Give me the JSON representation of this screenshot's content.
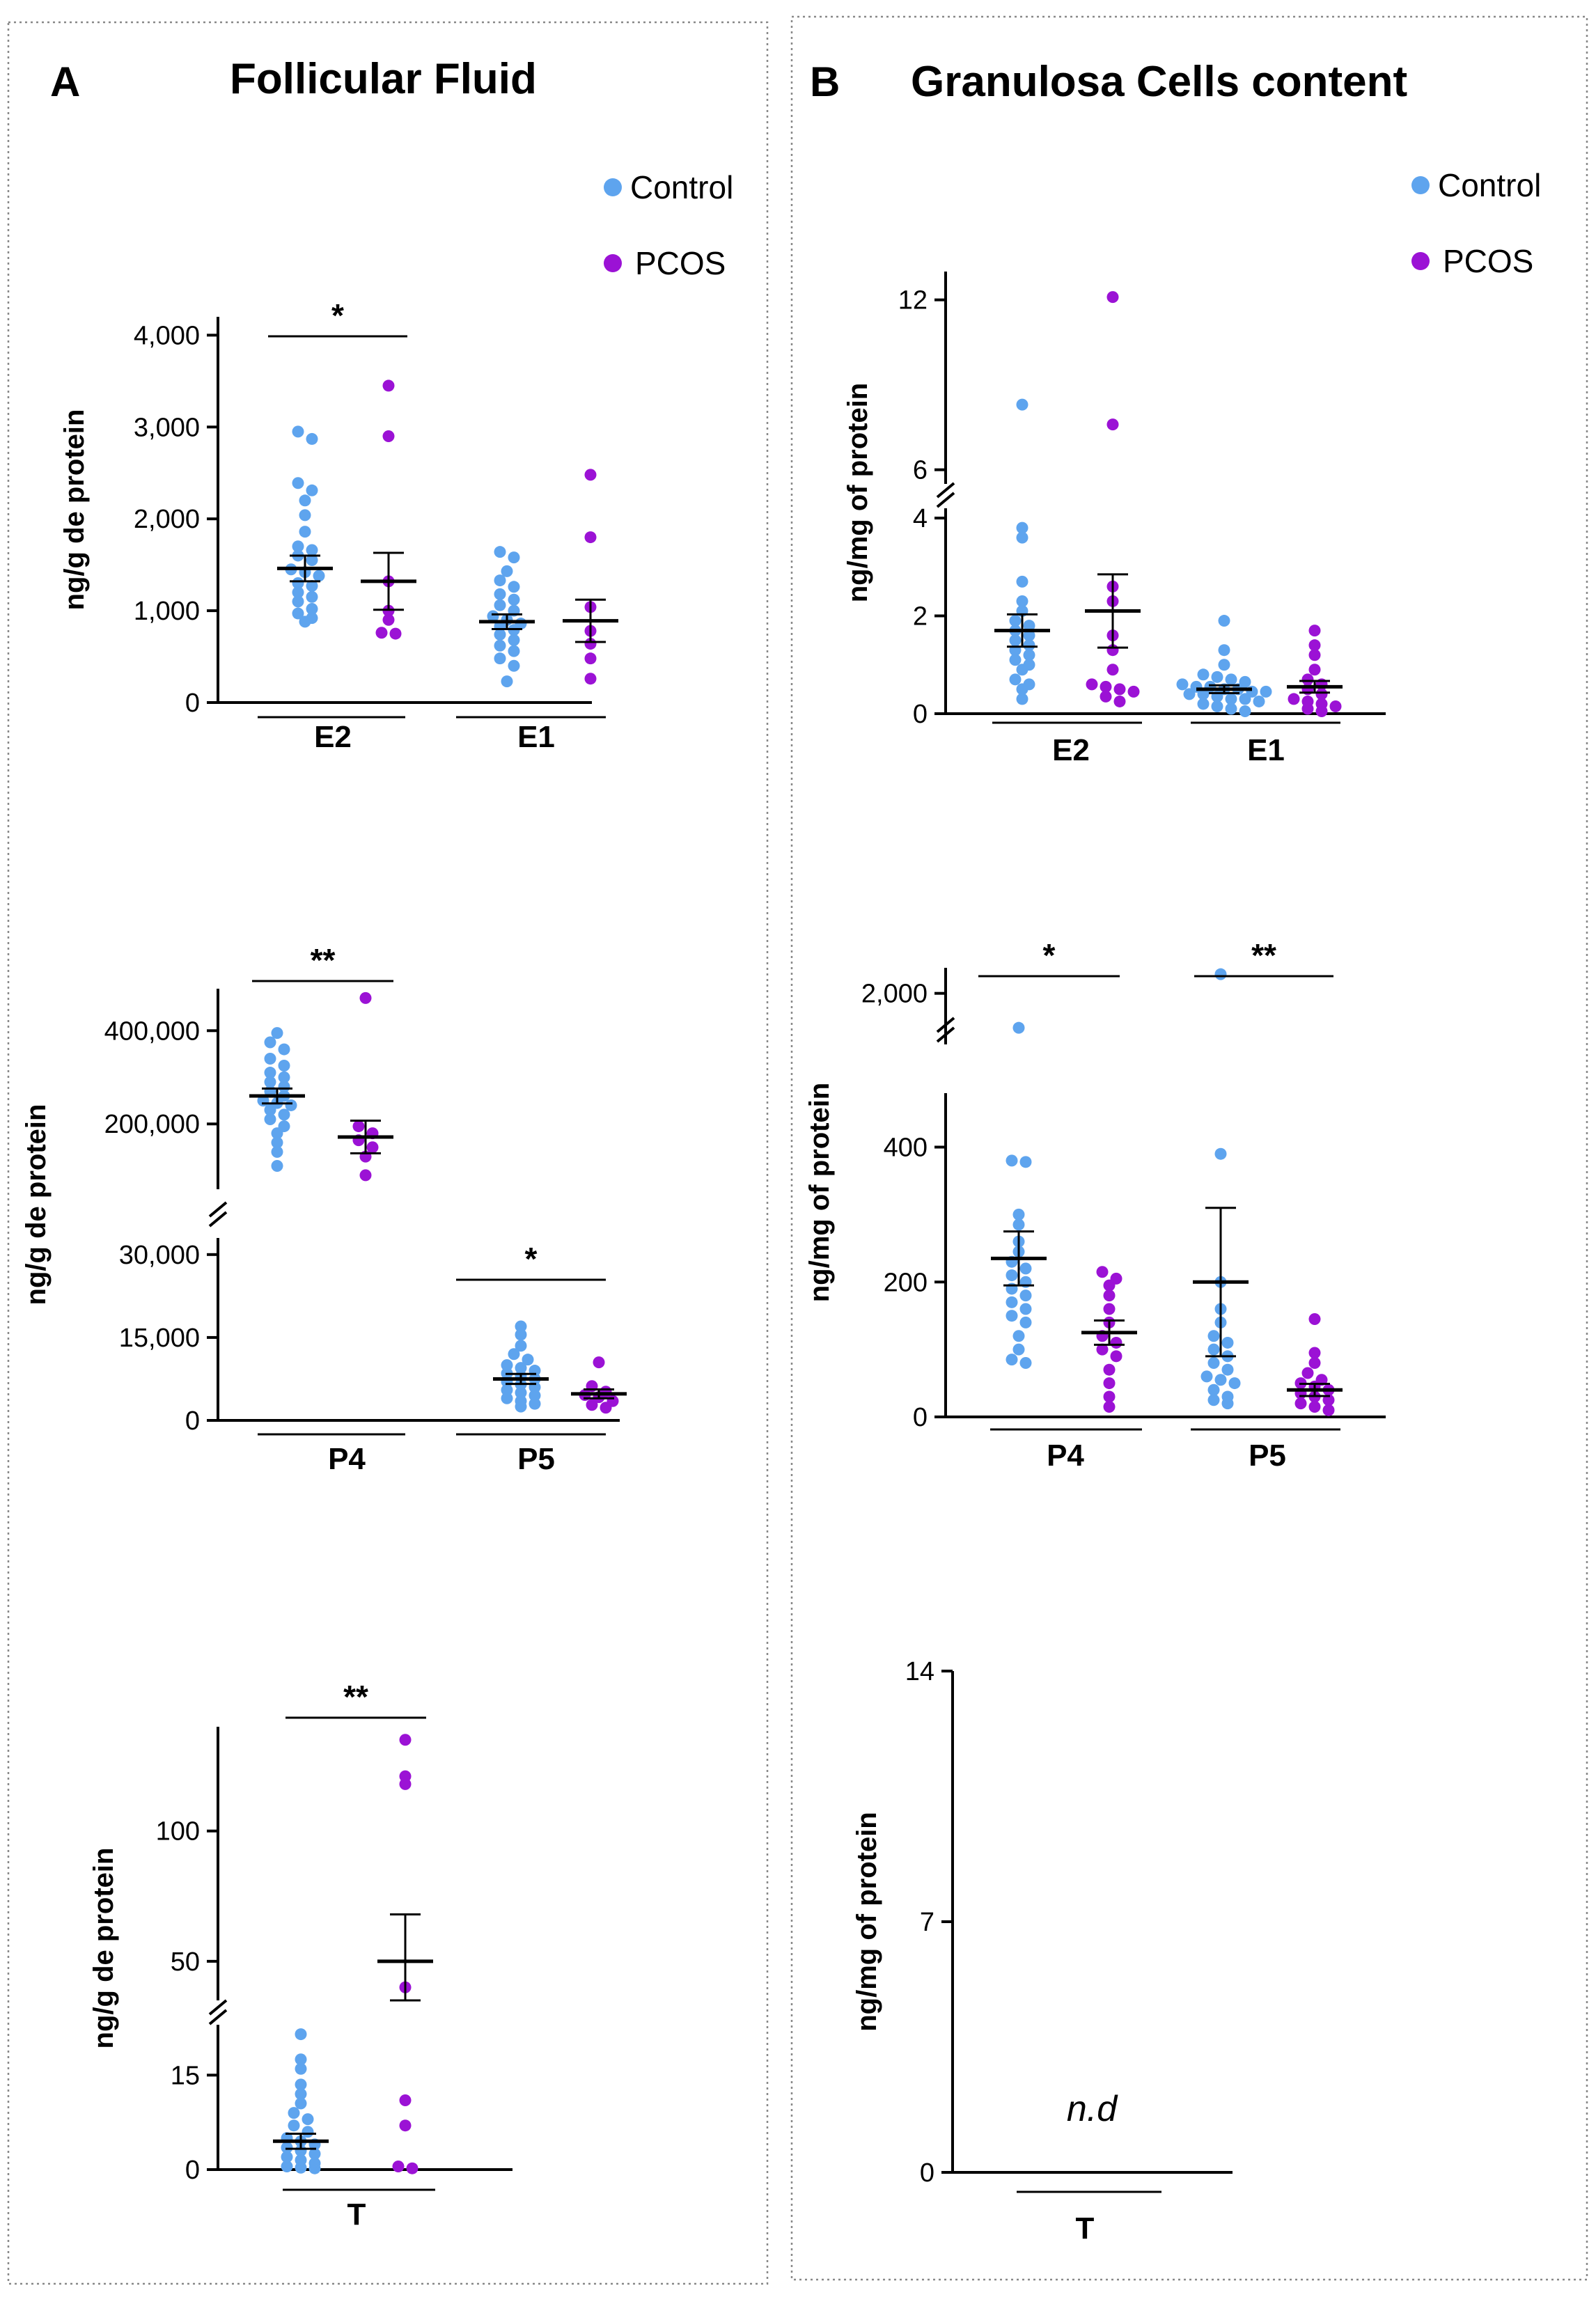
{
  "colors": {
    "control": "#5EA4EE",
    "pcos": "#9B12D5"
  },
  "panels": {
    "A": {
      "letter": "A",
      "title": "Follicular Fluid"
    },
    "B": {
      "letter": "B",
      "title": "Granulosa Cells content"
    }
  },
  "legend": {
    "control": "Control",
    "pcos": "PCOS"
  },
  "chart_data": [
    {
      "id": "a1",
      "panel": "A",
      "type": "scatter",
      "ylabel": "ng/g de protein",
      "segments": [
        {
          "ylim": [
            0,
            4200
          ],
          "ticks": [
            0,
            1000,
            2000,
            3000,
            4000
          ],
          "tick_labels": [
            "0",
            "1,000",
            "2,000",
            "3,000",
            "4,000"
          ]
        }
      ],
      "groups": [
        "E2",
        "E1"
      ],
      "series": [
        {
          "group": "E2",
          "name": "Control",
          "mean": 1460,
          "sem": 140,
          "values": [
            2950,
            2870,
            2390,
            2310,
            2200,
            2040,
            1860,
            1700,
            1660,
            1600,
            1550,
            1450,
            1420,
            1380,
            1300,
            1270,
            1200,
            1150,
            1100,
            1020,
            970,
            920,
            880
          ]
        },
        {
          "group": "E2",
          "name": "PCOS",
          "mean": 1320,
          "sem": 310,
          "values": [
            3450,
            2900,
            1320,
            1000,
            900,
            760,
            750
          ]
        },
        {
          "group": "E1",
          "name": "Control",
          "mean": 880,
          "sem": 80,
          "values": [
            1640,
            1580,
            1430,
            1330,
            1260,
            1180,
            1120,
            1060,
            1000,
            940,
            900,
            860,
            830,
            790,
            740,
            680,
            620,
            560,
            480,
            400,
            230
          ]
        },
        {
          "group": "E1",
          "name": "PCOS",
          "mean": 890,
          "sem": 230,
          "values": [
            2480,
            1800,
            1040,
            780,
            640,
            480,
            260
          ]
        }
      ],
      "significance": [
        {
          "label": "*",
          "between": [
            "E2 Control",
            "E2 PCOS"
          ]
        }
      ]
    },
    {
      "id": "a2",
      "panel": "A",
      "type": "scatter",
      "ylabel": "ng/g de protein",
      "segments": [
        {
          "ylim": [
            0,
            33000
          ],
          "ticks": [
            0,
            15000,
            30000
          ],
          "tick_labels": [
            "0",
            "15,000",
            "30,000"
          ]
        },
        {
          "ylim": [
            60000,
            490000
          ],
          "ticks": [
            200000,
            400000
          ],
          "tick_labels": [
            "200,000",
            "400,000"
          ]
        }
      ],
      "groups": [
        "P4",
        "P5"
      ],
      "series": [
        {
          "group": "P4",
          "name": "Control",
          "mean": 260000,
          "sem": 16000,
          "values": [
            395000,
            375000,
            360000,
            340000,
            325000,
            310000,
            300000,
            290000,
            280000,
            270000,
            260000,
            250000,
            245000,
            240000,
            230000,
            220000,
            210000,
            195000,
            180000,
            160000,
            140000,
            110000
          ]
        },
        {
          "group": "P4",
          "name": "PCOS",
          "mean": 172000,
          "sem": 35000,
          "values": [
            470000,
            195000,
            180000,
            165000,
            150000,
            130000,
            90000
          ]
        },
        {
          "group": "P5",
          "name": "Control",
          "mean": 7500,
          "sem": 900,
          "values": [
            17000,
            15500,
            13500,
            12000,
            11000,
            10000,
            9500,
            9000,
            8500,
            8000,
            7500,
            7000,
            6500,
            6000,
            5500,
            5000,
            4500,
            4000,
            3500,
            3000,
            2500
          ]
        },
        {
          "group": "P5",
          "name": "PCOS",
          "mean": 4800,
          "sem": 800,
          "values": [
            10500,
            6200,
            5200,
            4600,
            4200,
            3500,
            2800,
            2300
          ]
        }
      ],
      "significance": [
        {
          "label": "**",
          "between": [
            "P4 Control",
            "P4 PCOS"
          ]
        },
        {
          "label": "*",
          "between": [
            "P5 Control",
            "P5 PCOS"
          ]
        }
      ]
    },
    {
      "id": "a3",
      "panel": "A",
      "type": "scatter",
      "ylabel": "ng/g de protein",
      "segments": [
        {
          "ylim": [
            0,
            23
          ],
          "ticks": [
            0,
            15
          ],
          "tick_labels": [
            "0",
            "15"
          ]
        },
        {
          "ylim": [
            35,
            140
          ],
          "ticks": [
            50,
            100
          ],
          "tick_labels": [
            "50",
            "100"
          ]
        }
      ],
      "groups": [
        "T"
      ],
      "series": [
        {
          "group": "T",
          "name": "Control",
          "mean": 4.5,
          "sem": 1.2,
          "values": [
            21.5,
            17.5,
            16,
            13.5,
            12,
            10.5,
            9,
            8,
            7,
            6,
            5,
            4.5,
            4,
            3.5,
            3,
            2.5,
            2,
            1.5,
            1,
            0.5,
            0.3,
            0.2
          ]
        },
        {
          "group": "T",
          "name": "PCOS",
          "mean": 50,
          "sem": 18,
          "values": [
            135,
            121,
            118,
            40,
            11,
            7,
            0.5,
            0.2
          ]
        }
      ],
      "significance": [
        {
          "label": "**",
          "between": [
            "T Control",
            "T PCOS"
          ]
        }
      ]
    },
    {
      "id": "b1",
      "panel": "B",
      "type": "scatter",
      "ylabel": "ng/mg of protein",
      "segments": [
        {
          "ylim": [
            0,
            4.2
          ],
          "ticks": [
            0,
            2,
            4
          ],
          "tick_labels": [
            "0",
            "2",
            "4"
          ]
        },
        {
          "ylim": [
            5.5,
            13
          ],
          "ticks": [
            6,
            12
          ],
          "tick_labels": [
            "6",
            "12"
          ]
        }
      ],
      "groups": [
        "E2",
        "E1"
      ],
      "series": [
        {
          "group": "E2",
          "name": "Control",
          "mean": 1.7,
          "sem": 0.33,
          "values": [
            8.3,
            3.8,
            3.6,
            2.7,
            2.3,
            2.1,
            1.9,
            1.8,
            1.7,
            1.6,
            1.5,
            1.4,
            1.3,
            1.2,
            1.1,
            1.0,
            0.9,
            0.7,
            0.6,
            0.5,
            0.3
          ]
        },
        {
          "group": "E2",
          "name": "PCOS",
          "mean": 2.1,
          "sem": 0.75,
          "values": [
            12.1,
            7.6,
            2.6,
            2.3,
            1.6,
            1.3,
            0.9,
            0.6,
            0.55,
            0.5,
            0.45,
            0.35,
            0.25
          ]
        },
        {
          "group": "E1",
          "name": "Control",
          "mean": 0.5,
          "sem": 0.08,
          "values": [
            1.9,
            1.3,
            1.0,
            0.8,
            0.75,
            0.7,
            0.65,
            0.6,
            0.55,
            0.55,
            0.5,
            0.5,
            0.45,
            0.45,
            0.4,
            0.4,
            0.35,
            0.3,
            0.3,
            0.25,
            0.2,
            0.15,
            0.1,
            0.05
          ]
        },
        {
          "group": "E1",
          "name": "PCOS",
          "mean": 0.55,
          "sem": 0.12,
          "values": [
            1.7,
            1.4,
            1.2,
            0.9,
            0.7,
            0.6,
            0.5,
            0.4,
            0.3,
            0.25,
            0.2,
            0.15,
            0.1,
            0.05
          ]
        }
      ],
      "significance": []
    },
    {
      "id": "b2",
      "panel": "B",
      "type": "scatter",
      "ylabel": "ng/mg of protein",
      "segments": [
        {
          "ylim": [
            0,
            480
          ],
          "ticks": [
            0,
            200,
            400
          ],
          "tick_labels": [
            "0",
            "200",
            "400"
          ]
        },
        {
          "ylim": [
            1600,
            2200
          ],
          "ticks": [
            2000
          ],
          "tick_labels": [
            "2,000"
          ]
        }
      ],
      "groups": [
        "P4",
        "P5"
      ],
      "series": [
        {
          "group": "P4",
          "name": "Control",
          "mean": 235,
          "sem": 40,
          "values": [
            1730,
            380,
            378,
            300,
            285,
            260,
            245,
            230,
            220,
            210,
            200,
            190,
            180,
            170,
            160,
            150,
            140,
            120,
            100,
            85,
            80
          ]
        },
        {
          "group": "P4",
          "name": "PCOS",
          "mean": 125,
          "sem": 18,
          "values": [
            215,
            205,
            195,
            180,
            160,
            140,
            120,
            110,
            100,
            90,
            70,
            50,
            30,
            15
          ]
        },
        {
          "group": "P5",
          "name": "Control",
          "mean": 200,
          "sem": 110,
          "values": [
            2150,
            390,
            200,
            160,
            140,
            120,
            110,
            100,
            90,
            80,
            70,
            60,
            55,
            50,
            40,
            30,
            25,
            20
          ]
        },
        {
          "group": "P5",
          "name": "PCOS",
          "mean": 40,
          "sem": 9,
          "values": [
            145,
            95,
            80,
            65,
            55,
            50,
            45,
            40,
            35,
            30,
            25,
            20,
            15,
            10
          ]
        }
      ],
      "significance": [
        {
          "label": "*",
          "between": [
            "P4 Control",
            "P4 PCOS"
          ]
        },
        {
          "label": "**",
          "between": [
            "P5 Control",
            "P5 PCOS"
          ]
        }
      ]
    },
    {
      "id": "b3",
      "panel": "B",
      "type": "scatter",
      "ylabel": "ng/mg of protein",
      "segments": [
        {
          "ylim": [
            0,
            14
          ],
          "ticks": [
            0,
            7,
            14
          ],
          "tick_labels": [
            "0",
            "7",
            "14"
          ]
        }
      ],
      "groups": [
        "T"
      ],
      "series": [],
      "significance": [],
      "annotation": "n.d"
    }
  ]
}
